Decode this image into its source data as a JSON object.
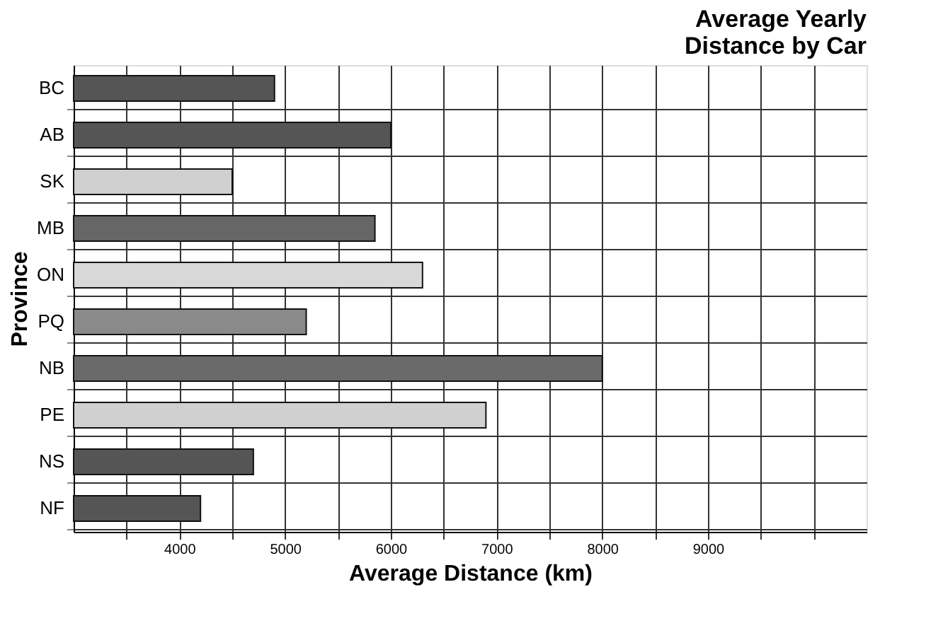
{
  "chart_data": {
    "type": "bar",
    "orientation": "horizontal",
    "title": [
      "Average Yearly",
      "Distance by Car"
    ],
    "xlabel": "Average Distance (km)",
    "ylabel": "Province",
    "categories": [
      "BC",
      "AB",
      "SK",
      "MB",
      "ON",
      "PQ",
      "NB",
      "PE",
      "NS",
      "NF"
    ],
    "values": [
      4900,
      6000,
      4500,
      5850,
      6300,
      5200,
      8000,
      6900,
      4700,
      4200
    ],
    "colors": [
      "#555555",
      "#555555",
      "#cfcfcf",
      "#666666",
      "#d8d8d8",
      "#8a8a8a",
      "#6a6a6a",
      "#d0d0d0",
      "#555555",
      "#555555"
    ],
    "xlim": [
      3000,
      10500
    ],
    "xticks": [
      {
        "value": 3500,
        "label": null
      },
      4000,
      {
        "value": 4500,
        "label": null
      },
      5000,
      {
        "value": 5500,
        "label": null
      },
      6000,
      {
        "value": 6500,
        "label": null
      },
      7000,
      {
        "value": 7500,
        "label": null
      },
      8000,
      {
        "value": 8500,
        "label": null
      },
      9000,
      {
        "value": 9500,
        "label": null
      },
      {
        "value": 10000,
        "label": null
      }
    ],
    "grid": true,
    "legend": false
  }
}
